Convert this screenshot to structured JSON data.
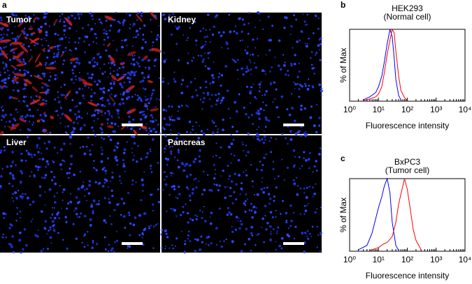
{
  "panel_a": {
    "panel": "a",
    "images": [
      {
        "label": "Tumor"
      },
      {
        "label": "Kidney"
      },
      {
        "label": "Liver"
      },
      {
        "label": "Pancreas"
      }
    ]
  },
  "chart_data": [
    {
      "type": "line",
      "panel": "b",
      "title": "HEK293",
      "subtitle": "(Normal cell)",
      "y_label": "% of Max",
      "x_label": "Fluorescence intensity",
      "x_log": true,
      "xlim": [
        1,
        10000
      ],
      "xticks": [
        {
          "value": 1,
          "label": "10⁰"
        },
        {
          "value": 10,
          "label": "10¹"
        },
        {
          "value": 100,
          "label": "10²"
        },
        {
          "value": 1000,
          "label": "10³"
        },
        {
          "value": 10000,
          "label": "10⁴"
        }
      ],
      "ylim": [
        0,
        100
      ],
      "series": [
        {
          "color": "#0000ff",
          "x": [
            3,
            5,
            8,
            10,
            13,
            16,
            20,
            25,
            30,
            35,
            40,
            50,
            60
          ],
          "values": [
            2,
            6,
            12,
            20,
            35,
            55,
            80,
            100,
            90,
            60,
            30,
            8,
            2
          ]
        },
        {
          "color": "#ff0000",
          "x": [
            3,
            5,
            8,
            10,
            13,
            16,
            20,
            25,
            30,
            35,
            40,
            50,
            60,
            80,
            100
          ],
          "values": [
            1,
            3,
            6,
            10,
            20,
            40,
            65,
            85,
            100,
            95,
            70,
            35,
            15,
            5,
            1
          ]
        }
      ]
    },
    {
      "type": "line",
      "panel": "c",
      "title": "BxPC3",
      "subtitle": "(Tumor cell)",
      "y_label": "% of Max",
      "x_label": "Fluorescence intensity",
      "x_log": true,
      "xlim": [
        1,
        10000
      ],
      "xticks": [
        {
          "value": 1,
          "label": "10⁰"
        },
        {
          "value": 10,
          "label": "10¹"
        },
        {
          "value": 100,
          "label": "10²"
        },
        {
          "value": 1000,
          "label": "10³"
        },
        {
          "value": 10000,
          "label": "10⁴"
        }
      ],
      "ylim": [
        0,
        100
      ],
      "series": [
        {
          "color": "#0000ff",
          "x": [
            2,
            4,
            6,
            8,
            10,
            13,
            16,
            20,
            25,
            30,
            40,
            50
          ],
          "values": [
            2,
            8,
            25,
            45,
            60,
            75,
            90,
            100,
            80,
            40,
            8,
            1
          ]
        },
        {
          "color": "#ff0000",
          "x": [
            5,
            10,
            15,
            20,
            30,
            40,
            50,
            70,
            80,
            100,
            130,
            160,
            200,
            300
          ],
          "values": [
            1,
            5,
            10,
            12,
            20,
            40,
            65,
            90,
            100,
            85,
            55,
            30,
            15,
            2
          ]
        }
      ]
    }
  ]
}
